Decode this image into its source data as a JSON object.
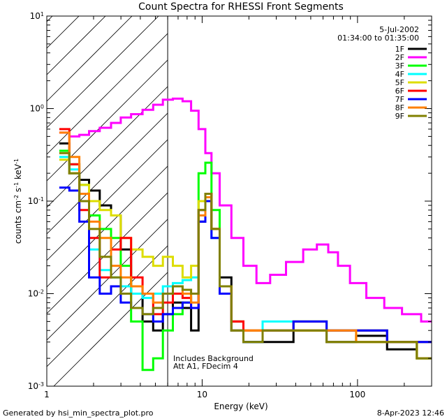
{
  "chart_data": {
    "type": "line",
    "title": "Count Spectra for RHESSI Front Segments",
    "xlabel": "Energy (keV)",
    "ylabel_parts": [
      "counts cm",
      "-2",
      " s",
      "-1",
      " keV",
      "-1"
    ],
    "xscale": "log",
    "yscale": "log",
    "xlim": [
      1,
      300
    ],
    "ylim": [
      0.001,
      10
    ],
    "x_ticks": [
      {
        "value": 1,
        "label": "1"
      },
      {
        "value": 10,
        "label": "10"
      },
      {
        "value": 100,
        "label": "100"
      }
    ],
    "y_ticks": [
      {
        "value": 0.001,
        "base": "10",
        "exp": "-3"
      },
      {
        "value": 0.01,
        "base": "10",
        "exp": "-2"
      },
      {
        "value": 0.1,
        "base": "10",
        "exp": "-1"
      },
      {
        "value": 1,
        "base": "10",
        "exp": "0"
      },
      {
        "value": 10,
        "base": "10",
        "exp": "1"
      }
    ],
    "legend_position": "top-right",
    "date_text": "5-Jul-2002",
    "time_range": "01:34:00 to 01:35:00",
    "annotation_lines": [
      "Includes Background",
      "Att A1, FDecim 4"
    ],
    "attenuator_edge_kev": 6,
    "hatched_region_kev": [
      1,
      6
    ],
    "series": [
      {
        "name": "1F",
        "color": "#000000",
        "x": [
          1.3,
          1.5,
          1.75,
          2,
          2.4,
          2.8,
          3.2,
          3.8,
          4.5,
          5.2,
          6,
          7,
          8,
          9,
          10,
          11,
          12,
          14,
          17,
          20,
          30,
          50,
          80,
          120,
          200,
          290
        ],
        "y": [
          0.42,
          0.2,
          0.17,
          0.13,
          0.09,
          0.07,
          0.03,
          0.01,
          0.005,
          0.004,
          0.006,
          0.008,
          0.007,
          0.004,
          0.06,
          0.11,
          0.05,
          0.015,
          0.005,
          0.003,
          0.003,
          0.004,
          0.003,
          0.0035,
          0.0025,
          0.002
        ]
      },
      {
        "name": "2F",
        "color": "#ff00ff",
        "x": [
          1.3,
          1.5,
          1.75,
          2,
          2.4,
          2.8,
          3.2,
          3.8,
          4.5,
          5.2,
          6,
          7,
          8,
          9,
          10,
          11,
          12,
          14,
          17,
          20,
          25,
          30,
          40,
          50,
          60,
          70,
          80,
          100,
          130,
          170,
          220,
          300
        ],
        "y": [
          0.55,
          0.5,
          0.52,
          0.57,
          0.62,
          0.7,
          0.8,
          0.87,
          0.97,
          1.1,
          1.25,
          1.28,
          1.2,
          0.95,
          0.6,
          0.33,
          0.2,
          0.09,
          0.04,
          0.02,
          0.013,
          0.016,
          0.022,
          0.03,
          0.034,
          0.028,
          0.02,
          0.013,
          0.009,
          0.007,
          0.006,
          0.005
        ]
      },
      {
        "name": "3F",
        "color": "#00ff00",
        "x": [
          1.3,
          1.5,
          1.75,
          2,
          2.4,
          2.8,
          3.2,
          3.8,
          4.5,
          5.2,
          6,
          7,
          8,
          9,
          10,
          11,
          12,
          14,
          17,
          20,
          30,
          50,
          80,
          120,
          200,
          290
        ],
        "y": [
          0.35,
          0.25,
          0.15,
          0.07,
          0.05,
          0.04,
          0.02,
          0.005,
          0.0015,
          0.002,
          0.004,
          0.006,
          0.008,
          0.01,
          0.2,
          0.26,
          0.08,
          0.01,
          0.004,
          0.003,
          0.004,
          0.005,
          0.004,
          0.004,
          0.003,
          0.002
        ]
      },
      {
        "name": "4F",
        "color": "#00ffff",
        "x": [
          1.3,
          1.5,
          1.75,
          2,
          2.4,
          2.8,
          3.2,
          3.8,
          4.5,
          5.2,
          6,
          7,
          8,
          9,
          10,
          11,
          12,
          14,
          17,
          20,
          30,
          50,
          80,
          120,
          200,
          290
        ],
        "y": [
          0.3,
          0.22,
          0.1,
          0.03,
          0.018,
          0.015,
          0.012,
          0.01,
          0.009,
          0.01,
          0.012,
          0.013,
          0.014,
          0.015,
          0.08,
          0.1,
          0.04,
          0.01,
          0.004,
          0.004,
          0.005,
          0.005,
          0.004,
          0.004,
          0.003,
          0.003
        ]
      },
      {
        "name": "5F",
        "color": "#dddd00",
        "x": [
          1.3,
          1.5,
          1.75,
          2,
          2.4,
          2.8,
          3.2,
          3.8,
          4.5,
          5.2,
          6,
          7,
          8,
          9,
          10,
          11,
          12,
          14,
          17,
          20,
          30,
          50,
          80,
          120,
          200,
          290
        ],
        "y": [
          0.28,
          0.2,
          0.15,
          0.1,
          0.08,
          0.07,
          0.04,
          0.03,
          0.025,
          0.02,
          0.025,
          0.02,
          0.015,
          0.02,
          0.1,
          0.12,
          0.05,
          0.012,
          0.005,
          0.004,
          0.004,
          0.004,
          0.004,
          0.003,
          0.003,
          0.002
        ]
      },
      {
        "name": "6F",
        "color": "#ff0000",
        "x": [
          1.3,
          1.5,
          1.75,
          2,
          2.4,
          2.8,
          3.2,
          3.8,
          4.5,
          5.2,
          6,
          7,
          8,
          9,
          10,
          11,
          12,
          14,
          17,
          20,
          30,
          50,
          80,
          120,
          200,
          290
        ],
        "y": [
          0.6,
          0.25,
          0.08,
          0.04,
          0.015,
          0.03,
          0.04,
          0.015,
          0.01,
          0.006,
          0.008,
          0.01,
          0.009,
          0.007,
          0.08,
          0.12,
          0.05,
          0.012,
          0.005,
          0.004,
          0.004,
          0.005,
          0.004,
          0.004,
          0.003,
          0.003
        ]
      },
      {
        "name": "7F",
        "color": "#0000ff",
        "x": [
          1.3,
          1.5,
          1.75,
          2,
          2.4,
          2.8,
          3.2,
          3.8,
          4.5,
          5.2,
          6,
          7,
          8,
          9,
          10,
          11,
          12,
          14,
          17,
          20,
          30,
          50,
          80,
          120,
          200,
          290
        ],
        "y": [
          0.14,
          0.13,
          0.06,
          0.015,
          0.01,
          0.012,
          0.008,
          0.007,
          0.006,
          0.005,
          0.006,
          0.007,
          0.008,
          0.007,
          0.06,
          0.1,
          0.04,
          0.01,
          0.004,
          0.003,
          0.004,
          0.005,
          0.004,
          0.004,
          0.003,
          0.003
        ]
      },
      {
        "name": "8F",
        "color": "#ff8000",
        "x": [
          1.3,
          1.5,
          1.75,
          2,
          2.4,
          2.8,
          3.2,
          3.8,
          4.5,
          5.2,
          6,
          7,
          8,
          9,
          10,
          11,
          12,
          14,
          17,
          20,
          30,
          50,
          80,
          120,
          200,
          290
        ],
        "y": [
          0.55,
          0.3,
          0.12,
          0.06,
          0.04,
          0.02,
          0.015,
          0.012,
          0.01,
          0.008,
          0.01,
          0.012,
          0.01,
          0.008,
          0.07,
          0.11,
          0.05,
          0.012,
          0.004,
          0.004,
          0.004,
          0.004,
          0.004,
          0.003,
          0.003,
          0.002
        ]
      },
      {
        "name": "9F",
        "color": "#808000",
        "x": [
          1.3,
          1.5,
          1.75,
          2,
          2.4,
          2.8,
          3.2,
          3.8,
          4.5,
          5.2,
          6,
          7,
          8,
          9,
          10,
          11,
          12,
          14,
          17,
          20,
          30,
          50,
          80,
          120,
          200,
          290
        ],
        "y": [
          0.33,
          0.2,
          0.1,
          0.05,
          0.025,
          0.015,
          0.01,
          0.007,
          0.006,
          0.007,
          0.01,
          0.012,
          0.011,
          0.01,
          0.08,
          0.12,
          0.05,
          0.012,
          0.004,
          0.003,
          0.004,
          0.004,
          0.003,
          0.003,
          0.003,
          0.002
        ]
      }
    ]
  },
  "footer": {
    "generated_by": "Generated by hsi_min_spectra_plot.pro",
    "date": "8-Apr-2023 12:46"
  }
}
